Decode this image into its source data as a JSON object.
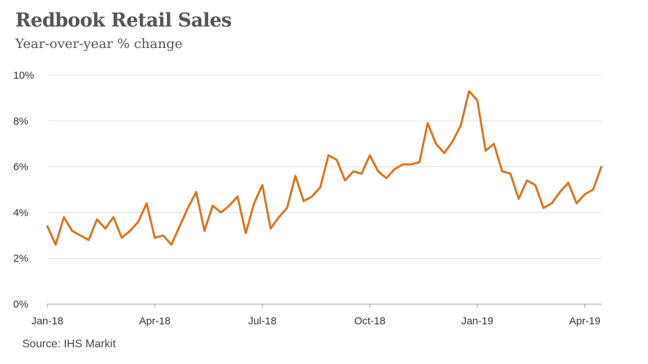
{
  "chart_data": {
    "type": "line",
    "title": "Redbook Retail Sales",
    "subtitle": "Year-over-year % change",
    "source": "Source: IHS Markit",
    "xlabel": "",
    "ylabel": "",
    "ylim": [
      0,
      10
    ],
    "yticks": [
      "0%",
      "2%",
      "4%",
      "6%",
      "8%",
      "10%"
    ],
    "xticks": [
      "Jan-18",
      "Apr-18",
      "Jul-18",
      "Oct-18",
      "Jan-19",
      "Apr-19"
    ],
    "grid": true,
    "legend": "none",
    "line_color": "#D9731E",
    "series": [
      {
        "values": [
          3.4,
          2.6,
          3.8,
          3.2,
          3.0,
          2.8,
          3.7,
          3.3,
          3.8,
          2.9,
          3.2,
          3.6,
          4.4,
          2.9,
          3.0,
          2.6,
          3.4,
          4.2,
          4.9,
          3.2,
          4.3,
          4.0,
          4.3,
          4.7,
          3.1,
          4.4,
          5.2,
          3.3,
          3.8,
          4.2,
          5.6,
          4.5,
          4.7,
          5.1,
          6.5,
          6.3,
          5.4,
          5.8,
          5.7,
          6.5,
          5.8,
          5.5,
          5.9,
          6.1,
          6.1,
          6.2,
          7.9,
          7.0,
          6.6,
          7.1,
          7.8,
          9.3,
          8.9,
          6.7,
          7.0,
          5.8,
          5.7,
          4.6,
          5.4,
          5.2,
          4.2,
          4.4,
          4.9,
          5.3,
          4.4,
          4.8,
          5.0,
          6.0
        ]
      }
    ]
  }
}
